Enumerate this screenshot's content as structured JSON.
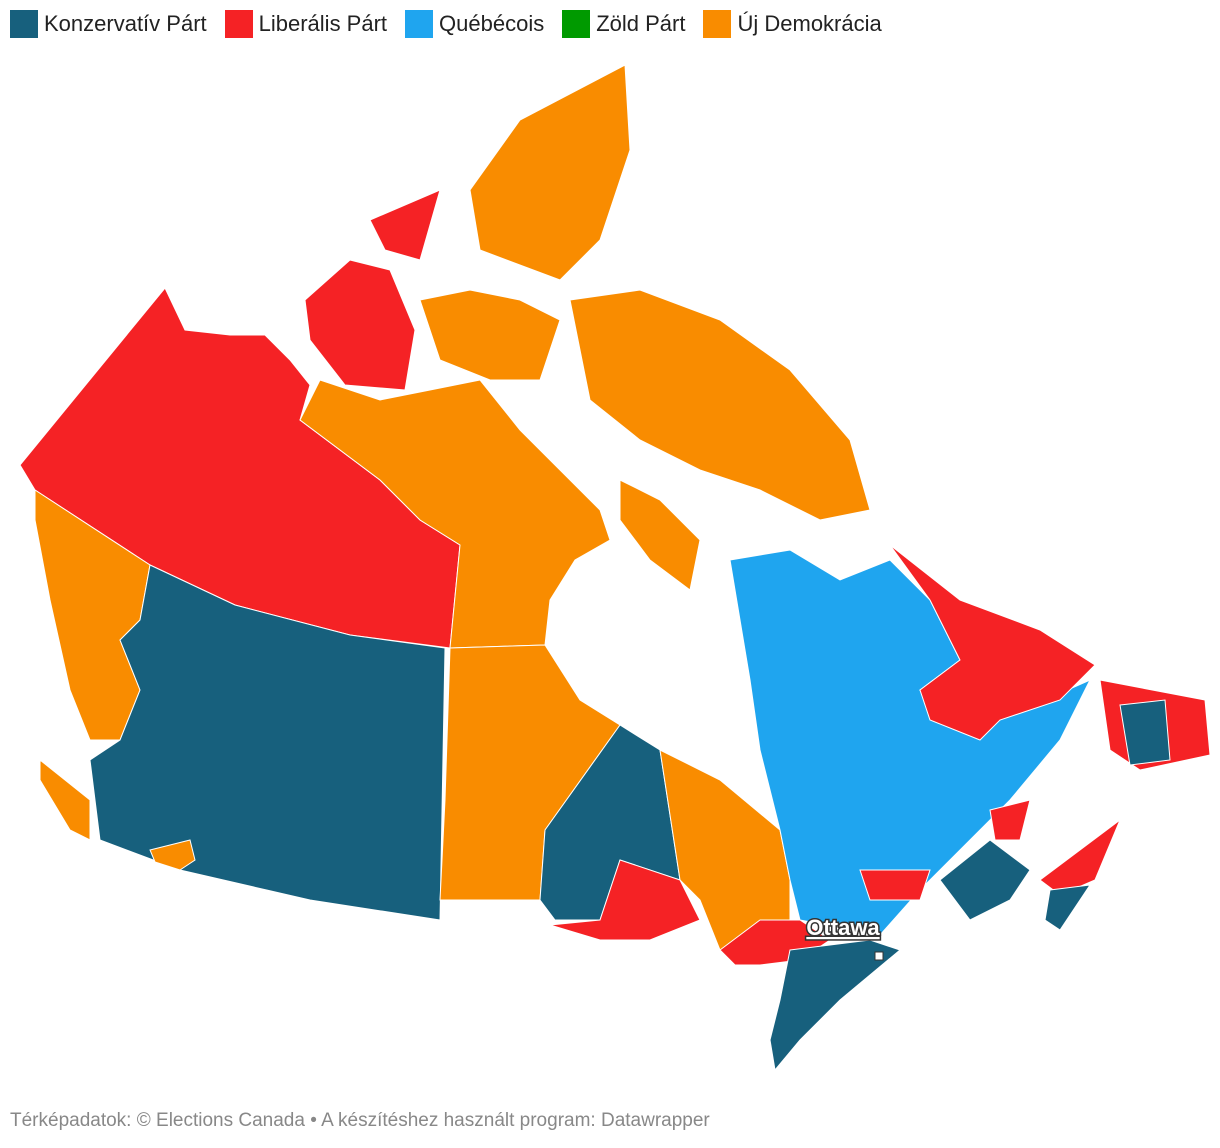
{
  "legend": [
    {
      "name": "Konzervatív Párt",
      "color": "#17607d"
    },
    {
      "name": "Liberális Párt",
      "color": "#f52225"
    },
    {
      "name": "Québécois",
      "color": "#1fa5ef"
    },
    {
      "name": "Zöld Párt",
      "color": "#009a00"
    },
    {
      "name": "Új Demokrácia",
      "color": "#f98c00"
    }
  ],
  "city_label": "Ottawa",
  "footer": "Térképadatok: © Elections Canada  • A készítéshez használt program: Datawrapper"
}
